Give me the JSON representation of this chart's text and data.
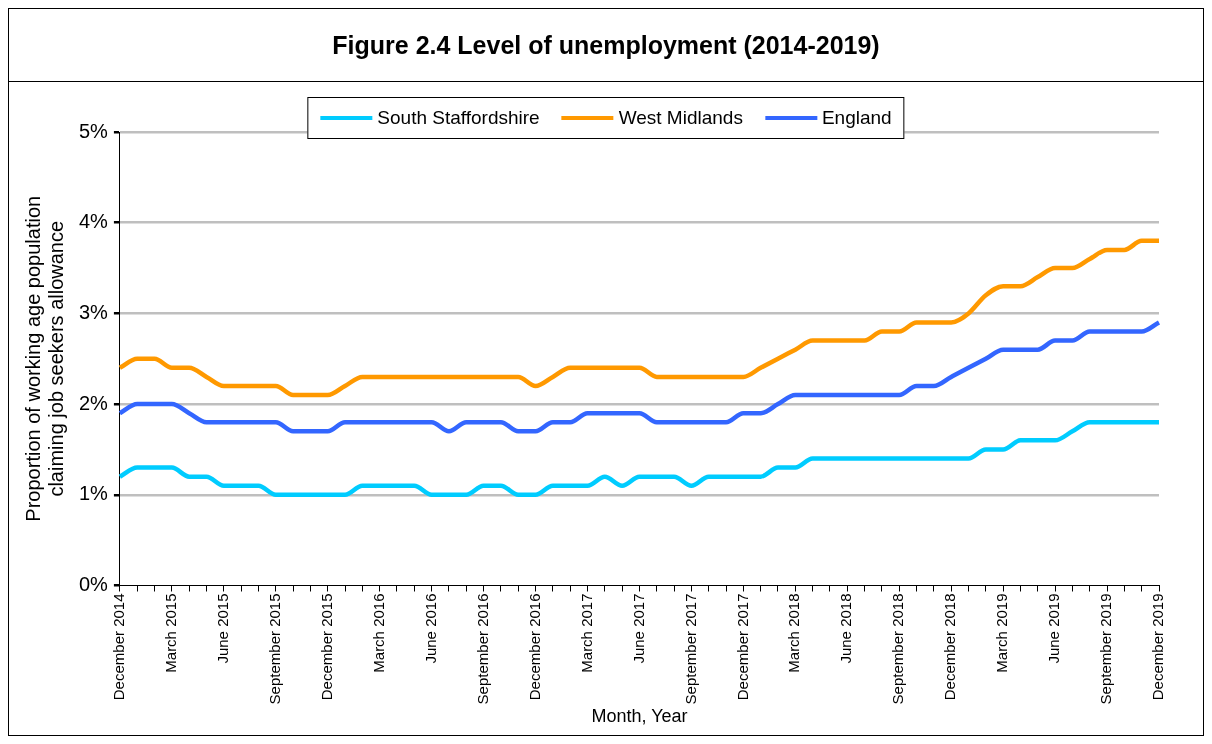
{
  "chart_data": {
    "type": "line",
    "title": "Figure 2.4 Level of unemployment (2014-2019)",
    "xlabel": "Month, Year",
    "ylabel": "Proportion of working age population claiming job seekers allowance",
    "categories": [
      "December 2014",
      null,
      null,
      "March 2015",
      null,
      null,
      "June 2015",
      null,
      null,
      "September 2015",
      null,
      null,
      "December 2015",
      null,
      null,
      "March 2016",
      null,
      null,
      "June 2016",
      null,
      null,
      "September 2016",
      null,
      null,
      "December 2016",
      null,
      null,
      "March 2017",
      null,
      null,
      "June 2017",
      null,
      null,
      "September 2017",
      null,
      null,
      "December 2017",
      null,
      null,
      "March 2018",
      null,
      null,
      "June 2018",
      null,
      null,
      "September 2018",
      null,
      null,
      "December 2018",
      null,
      null,
      "March 2019",
      null,
      null,
      "June 2019",
      null,
      null,
      "September 2019",
      null,
      null,
      "December 2019"
    ],
    "series": [
      {
        "name": "South Staffordshire",
        "color": "#00ccff",
        "values": [
          1.2,
          1.3,
          1.3,
          1.3,
          1.2,
          1.2,
          1.1,
          1.1,
          1.1,
          1.0,
          1.0,
          1.0,
          1.0,
          1.0,
          1.1,
          1.1,
          1.1,
          1.1,
          1.0,
          1.0,
          1.0,
          1.1,
          1.1,
          1.0,
          1.0,
          1.1,
          1.1,
          1.1,
          1.2,
          1.1,
          1.2,
          1.2,
          1.2,
          1.1,
          1.2,
          1.2,
          1.2,
          1.2,
          1.3,
          1.3,
          1.4,
          1.4,
          1.4,
          1.4,
          1.4,
          1.4,
          1.4,
          1.4,
          1.4,
          1.4,
          1.5,
          1.5,
          1.6,
          1.6,
          1.6,
          1.7,
          1.8,
          1.8,
          1.8,
          1.8,
          1.8
        ]
      },
      {
        "name": "West Midlands",
        "color": "#ff9900",
        "values": [
          2.4,
          2.5,
          2.5,
          2.4,
          2.4,
          2.3,
          2.2,
          2.2,
          2.2,
          2.2,
          2.1,
          2.1,
          2.1,
          2.2,
          2.3,
          2.3,
          2.3,
          2.3,
          2.3,
          2.3,
          2.3,
          2.3,
          2.3,
          2.3,
          2.2,
          2.3,
          2.4,
          2.4,
          2.4,
          2.4,
          2.4,
          2.3,
          2.3,
          2.3,
          2.3,
          2.3,
          2.3,
          2.4,
          2.5,
          2.6,
          2.7,
          2.7,
          2.7,
          2.7,
          2.8,
          2.8,
          2.9,
          2.9,
          2.9,
          3.0,
          3.2,
          3.3,
          3.3,
          3.4,
          3.5,
          3.5,
          3.6,
          3.7,
          3.7,
          3.8,
          3.8
        ]
      },
      {
        "name": "England",
        "color": "#3366ff",
        "values": [
          1.9,
          2.0,
          2.0,
          2.0,
          1.9,
          1.8,
          1.8,
          1.8,
          1.8,
          1.8,
          1.7,
          1.7,
          1.7,
          1.8,
          1.8,
          1.8,
          1.8,
          1.8,
          1.8,
          1.7,
          1.8,
          1.8,
          1.8,
          1.7,
          1.7,
          1.8,
          1.8,
          1.9,
          1.9,
          1.9,
          1.9,
          1.8,
          1.8,
          1.8,
          1.8,
          1.8,
          1.9,
          1.9,
          2.0,
          2.1,
          2.1,
          2.1,
          2.1,
          2.1,
          2.1,
          2.1,
          2.2,
          2.2,
          2.3,
          2.4,
          2.5,
          2.6,
          2.6,
          2.6,
          2.7,
          2.7,
          2.8,
          2.8,
          2.8,
          2.8,
          2.9
        ]
      }
    ],
    "ylim": [
      0,
      5
    ],
    "yticks": [
      {
        "value": 0,
        "label": "0%"
      },
      {
        "value": 1,
        "label": "1%"
      },
      {
        "value": 2,
        "label": "2%"
      },
      {
        "value": 3,
        "label": "3%"
      },
      {
        "value": 4,
        "label": "4%"
      },
      {
        "value": 5,
        "label": "5%"
      }
    ],
    "grid": "y",
    "legend": "top",
    "marker": "none",
    "line_style": "solid"
  }
}
